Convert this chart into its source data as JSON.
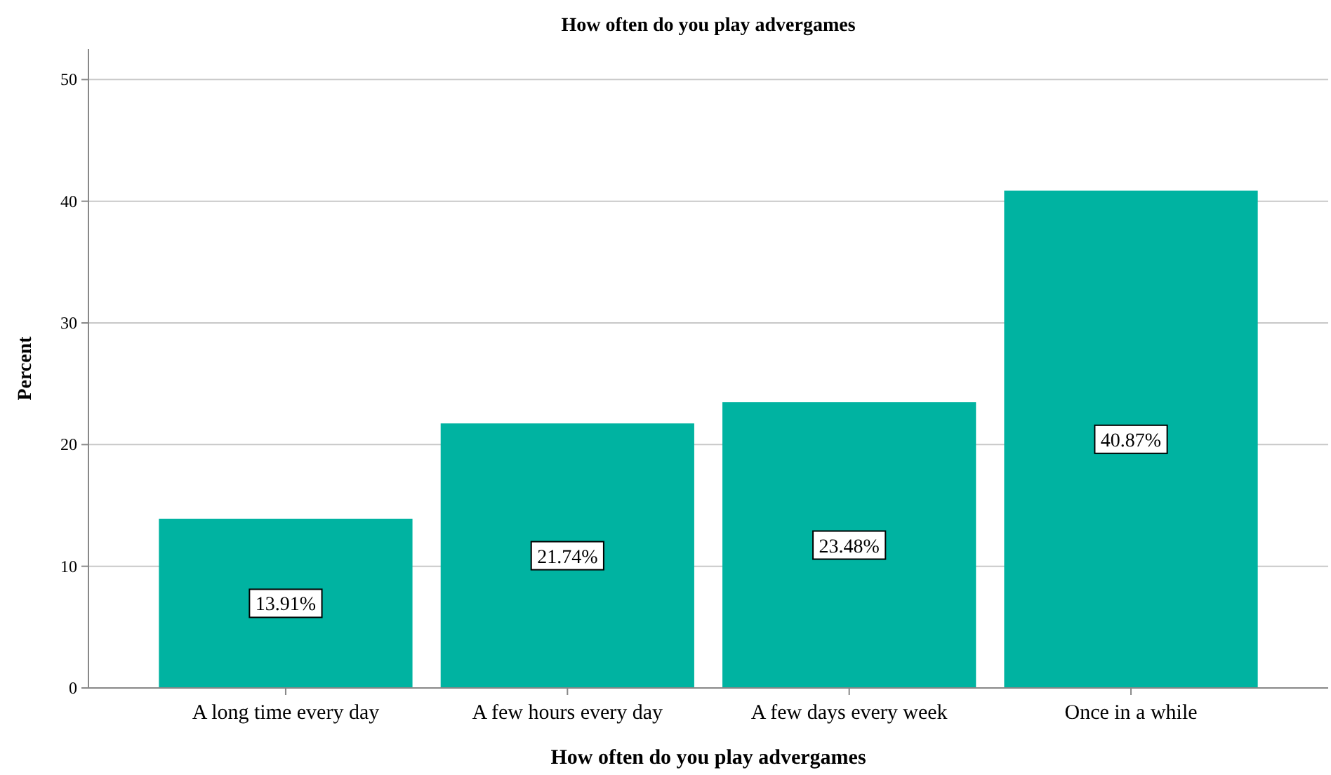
{
  "chart_data": {
    "type": "bar",
    "title": "How often do you play advergames",
    "xlabel": "How often do you play advergames",
    "ylabel": "Percent",
    "categories": [
      "A long time every day",
      "A few hours every day",
      "A few days every week",
      "Once in a while"
    ],
    "values": [
      13.91,
      21.74,
      23.48,
      40.87
    ],
    "value_labels": [
      "13.91%",
      "21.74%",
      "23.48%",
      "40.87%"
    ],
    "color": "#00b3a1",
    "ylim": [
      0,
      52.5
    ],
    "yticks": [
      0,
      10,
      20,
      30,
      40,
      50
    ],
    "grid": "y"
  }
}
